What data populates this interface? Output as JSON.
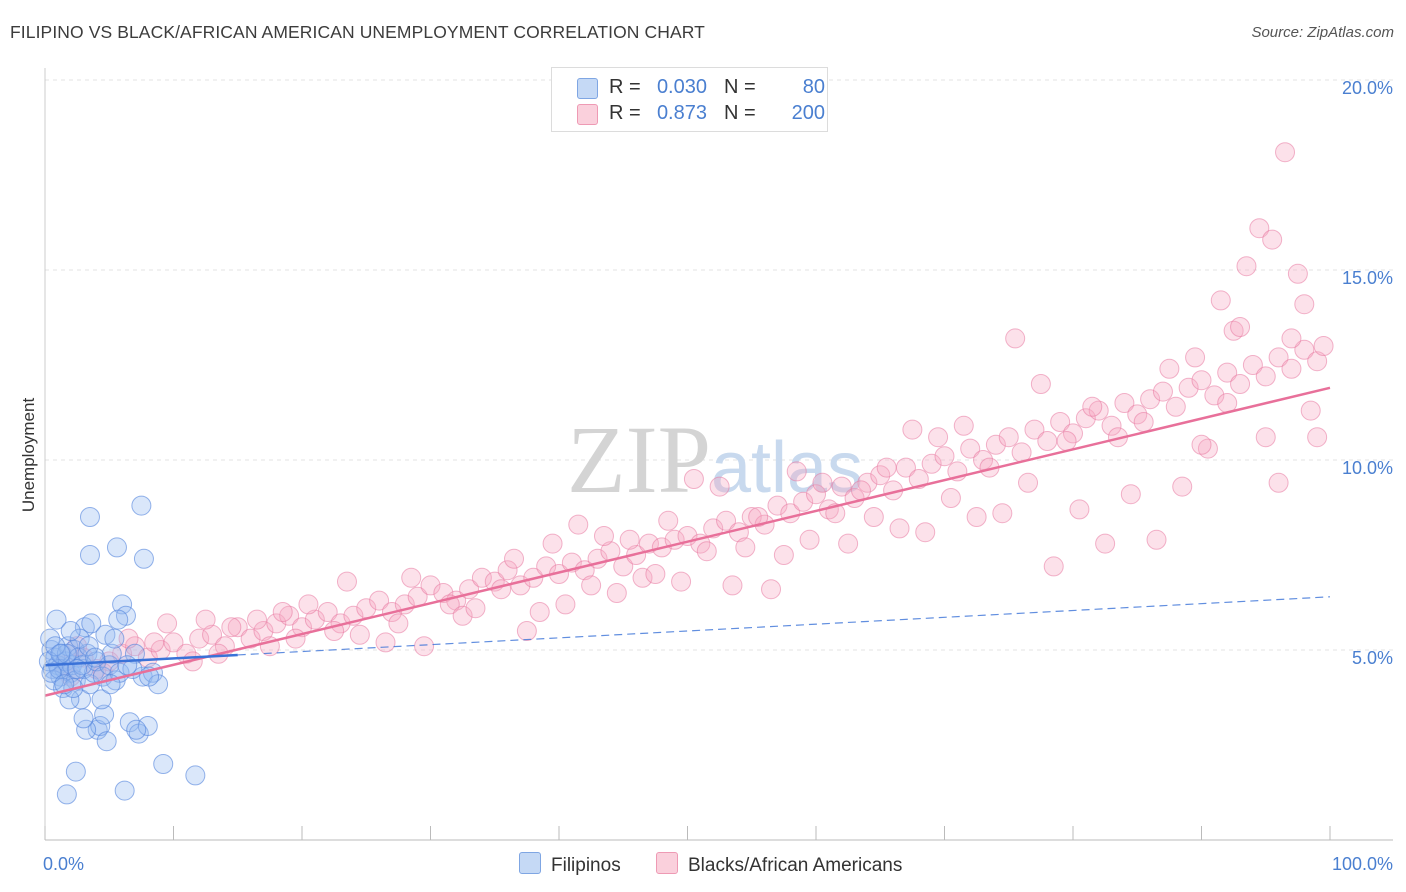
{
  "header": {
    "title": "FILIPINO VS BLACK/AFRICAN AMERICAN UNEMPLOYMENT CORRELATION CHART",
    "source": "Source: ZipAtlas.com"
  },
  "watermark": "ZIPatlas",
  "legend": {
    "rows": [
      {
        "r_label": "R =",
        "r_value": "0.030",
        "n_label": "N =",
        "n_value": "80",
        "color": "#a9c6f0"
      },
      {
        "r_label": "R =",
        "r_value": "0.873",
        "n_label": "N =",
        "n_value": "200",
        "color": "#f5b6c8"
      }
    ]
  },
  "bottom_legend": {
    "series1": "Filipinos",
    "series2": "Blacks/African Americans"
  },
  "chart_data": {
    "type": "scatter",
    "title": "FILIPINO VS BLACK/AFRICAN AMERICAN UNEMPLOYMENT CORRELATION CHART",
    "xlabel": "",
    "ylabel": "Unemployment",
    "xlim": [
      0,
      100
    ],
    "ylim": [
      0,
      20
    ],
    "x_tick_labels": [
      "0.0%",
      "100.0%"
    ],
    "y_ticks": [
      5,
      10,
      15,
      20
    ],
    "y_tick_labels": [
      "5.0%",
      "10.0%",
      "15.0%",
      "20.0%"
    ],
    "grid": true,
    "colors": {
      "filipinos": "#6a9be0",
      "blacks": "#ef8fae",
      "filipinos_line": "#3a72d8",
      "blacks_line": "#e8709a"
    },
    "series": [
      {
        "name": "Filipinos",
        "R": 0.03,
        "N": 80,
        "trend": {
          "x": [
            0,
            100
          ],
          "y": [
            4.6,
            6.4
          ],
          "solid_until_x": 15
        },
        "points": [
          [
            0.5,
            5.0
          ],
          [
            0.6,
            4.5
          ],
          [
            0.8,
            4.8
          ],
          [
            1.0,
            4.6
          ],
          [
            1.2,
            4.3
          ],
          [
            1.3,
            4.9
          ],
          [
            1.5,
            4.5
          ],
          [
            1.6,
            4.7
          ],
          [
            1.8,
            5.1
          ],
          [
            2.0,
            4.4
          ],
          [
            2.1,
            4.6
          ],
          [
            2.3,
            5.0
          ],
          [
            2.4,
            4.2
          ],
          [
            2.6,
            4.8
          ],
          [
            2.8,
            3.7
          ],
          [
            3.0,
            4.5
          ],
          [
            3.1,
            5.6
          ],
          [
            3.3,
            4.9
          ],
          [
            3.5,
            4.1
          ],
          [
            3.6,
            5.7
          ],
          [
            3.8,
            4.4
          ],
          [
            4.0,
            4.7
          ],
          [
            4.1,
            2.9
          ],
          [
            4.3,
            3.0
          ],
          [
            4.5,
            4.3
          ],
          [
            4.6,
            3.3
          ],
          [
            4.8,
            2.6
          ],
          [
            5.0,
            4.6
          ],
          [
            5.2,
            4.9
          ],
          [
            5.5,
            4.2
          ],
          [
            5.8,
            4.4
          ],
          [
            6.0,
            6.2
          ],
          [
            6.3,
            5.9
          ],
          [
            6.6,
            3.1
          ],
          [
            7.0,
            4.9
          ],
          [
            7.3,
            2.8
          ],
          [
            7.6,
            4.3
          ],
          [
            8.0,
            3.0
          ],
          [
            8.4,
            4.4
          ],
          [
            8.8,
            4.1
          ],
          [
            9.2,
            2.0
          ],
          [
            3.5,
            8.5
          ],
          [
            3.5,
            7.5
          ],
          [
            5.6,
            7.7
          ],
          [
            7.5,
            8.8
          ],
          [
            7.7,
            7.4
          ],
          [
            1.7,
            1.2
          ],
          [
            2.4,
            1.8
          ],
          [
            6.2,
            1.3
          ],
          [
            11.7,
            1.7
          ],
          [
            0.4,
            5.3
          ],
          [
            0.9,
            5.8
          ],
          [
            1.4,
            4.0
          ],
          [
            1.9,
            3.7
          ],
          [
            2.7,
            5.3
          ],
          [
            3.2,
            2.9
          ],
          [
            4.7,
            5.4
          ],
          [
            5.4,
            5.3
          ],
          [
            6.8,
            4.5
          ],
          [
            7.1,
            2.9
          ],
          [
            0.7,
            4.2
          ],
          [
            1.1,
            4.5
          ],
          [
            1.7,
            4.9
          ],
          [
            2.2,
            4.0
          ],
          [
            2.9,
            4.6
          ],
          [
            3.4,
            5.1
          ],
          [
            3.9,
            4.8
          ],
          [
            4.4,
            3.7
          ],
          [
            5.1,
            4.1
          ],
          [
            5.7,
            5.8
          ],
          [
            6.4,
            4.6
          ],
          [
            8.1,
            4.3
          ],
          [
            0.3,
            4.7
          ],
          [
            0.5,
            4.4
          ],
          [
            0.8,
            5.1
          ],
          [
            1.2,
            4.9
          ],
          [
            1.5,
            4.1
          ],
          [
            2.0,
            5.5
          ],
          [
            2.5,
            4.5
          ],
          [
            3.0,
            3.2
          ]
        ]
      },
      {
        "name": "Blacks/African Americans",
        "R": 0.873,
        "N": 200,
        "trend": {
          "x": [
            0,
            100
          ],
          "y": [
            3.8,
            11.9
          ]
        },
        "points": [
          [
            1.5,
            4.6
          ],
          [
            2.0,
            4.3
          ],
          [
            3.0,
            4.8
          ],
          [
            4.0,
            4.5
          ],
          [
            5.0,
            4.7
          ],
          [
            6.0,
            4.9
          ],
          [
            7.0,
            5.1
          ],
          [
            8.0,
            4.8
          ],
          [
            9.0,
            5.0
          ],
          [
            10.0,
            5.2
          ],
          [
            11.0,
            4.9
          ],
          [
            12.0,
            5.3
          ],
          [
            13.0,
            5.4
          ],
          [
            14.0,
            5.1
          ],
          [
            15.0,
            5.6
          ],
          [
            16.0,
            5.3
          ],
          [
            17.0,
            5.5
          ],
          [
            18.0,
            5.7
          ],
          [
            19.0,
            5.9
          ],
          [
            20.0,
            5.6
          ],
          [
            21.0,
            5.8
          ],
          [
            22.0,
            6.0
          ],
          [
            23.0,
            5.7
          ],
          [
            24.0,
            5.9
          ],
          [
            25.0,
            6.1
          ],
          [
            26.0,
            6.3
          ],
          [
            27.0,
            6.0
          ],
          [
            28.0,
            6.2
          ],
          [
            29.0,
            6.4
          ],
          [
            30.0,
            6.7
          ],
          [
            31.0,
            6.5
          ],
          [
            32.0,
            6.3
          ],
          [
            33.0,
            6.6
          ],
          [
            34.0,
            6.9
          ],
          [
            35.0,
            6.8
          ],
          [
            36.0,
            7.1
          ],
          [
            37.0,
            6.7
          ],
          [
            38.0,
            6.9
          ],
          [
            39.0,
            7.2
          ],
          [
            40.0,
            7.0
          ],
          [
            41.0,
            7.3
          ],
          [
            42.0,
            7.1
          ],
          [
            43.0,
            7.4
          ],
          [
            44.0,
            7.6
          ],
          [
            45.0,
            7.2
          ],
          [
            46.0,
            7.5
          ],
          [
            47.0,
            7.8
          ],
          [
            48.0,
            7.7
          ],
          [
            49.0,
            7.9
          ],
          [
            50.0,
            8.0
          ],
          [
            51.0,
            7.8
          ],
          [
            52.0,
            8.2
          ],
          [
            53.0,
            8.4
          ],
          [
            54.0,
            8.1
          ],
          [
            55.0,
            8.5
          ],
          [
            56.0,
            8.3
          ],
          [
            57.0,
            8.8
          ],
          [
            58.0,
            8.6
          ],
          [
            59.0,
            8.9
          ],
          [
            60.0,
            9.1
          ],
          [
            61.0,
            8.7
          ],
          [
            62.0,
            9.3
          ],
          [
            63.0,
            9.0
          ],
          [
            64.0,
            9.4
          ],
          [
            65.0,
            9.6
          ],
          [
            66.0,
            9.2
          ],
          [
            67.0,
            9.8
          ],
          [
            68.0,
            9.5
          ],
          [
            69.0,
            9.9
          ],
          [
            70.0,
            10.1
          ],
          [
            71.0,
            9.7
          ],
          [
            72.0,
            10.3
          ],
          [
            73.0,
            10.0
          ],
          [
            74.0,
            10.4
          ],
          [
            75.0,
            10.6
          ],
          [
            76.0,
            10.2
          ],
          [
            77.0,
            10.8
          ],
          [
            78.0,
            10.5
          ],
          [
            79.0,
            11.0
          ],
          [
            80.0,
            10.7
          ],
          [
            81.0,
            11.1
          ],
          [
            82.0,
            11.3
          ],
          [
            83.0,
            10.9
          ],
          [
            84.0,
            11.5
          ],
          [
            85.0,
            11.2
          ],
          [
            86.0,
            11.6
          ],
          [
            87.0,
            11.8
          ],
          [
            88.0,
            11.4
          ],
          [
            89.0,
            11.9
          ],
          [
            90.0,
            12.1
          ],
          [
            91.0,
            11.7
          ],
          [
            92.0,
            12.3
          ],
          [
            93.0,
            12.0
          ],
          [
            94.0,
            12.5
          ],
          [
            95.0,
            12.2
          ],
          [
            96.0,
            12.7
          ],
          [
            97.0,
            12.4
          ],
          [
            98.0,
            12.9
          ],
          [
            99.0,
            12.6
          ],
          [
            99.5,
            13.0
          ],
          [
            2.5,
            5.1
          ],
          [
            4.5,
            4.4
          ],
          [
            6.5,
            5.3
          ],
          [
            8.5,
            5.2
          ],
          [
            9.5,
            5.7
          ],
          [
            11.5,
            4.7
          ],
          [
            12.5,
            5.8
          ],
          [
            13.5,
            4.9
          ],
          [
            14.5,
            5.6
          ],
          [
            16.5,
            5.8
          ],
          [
            17.5,
            5.1
          ],
          [
            18.5,
            6.0
          ],
          [
            19.5,
            5.3
          ],
          [
            20.5,
            6.2
          ],
          [
            22.5,
            5.5
          ],
          [
            23.5,
            6.8
          ],
          [
            24.5,
            5.4
          ],
          [
            26.5,
            5.2
          ],
          [
            27.5,
            5.7
          ],
          [
            28.5,
            6.9
          ],
          [
            29.5,
            5.1
          ],
          [
            31.5,
            6.2
          ],
          [
            32.5,
            5.9
          ],
          [
            33.5,
            6.1
          ],
          [
            35.5,
            6.6
          ],
          [
            36.5,
            7.4
          ],
          [
            37.5,
            5.5
          ],
          [
            38.5,
            6.0
          ],
          [
            39.5,
            7.8
          ],
          [
            40.5,
            6.2
          ],
          [
            41.5,
            8.3
          ],
          [
            42.5,
            6.7
          ],
          [
            43.5,
            8.0
          ],
          [
            44.5,
            6.5
          ],
          [
            45.5,
            7.9
          ],
          [
            46.5,
            6.9
          ],
          [
            47.5,
            7.0
          ],
          [
            48.5,
            8.4
          ],
          [
            49.5,
            6.8
          ],
          [
            50.5,
            9.5
          ],
          [
            51.5,
            7.6
          ],
          [
            52.5,
            9.3
          ],
          [
            53.5,
            6.7
          ],
          [
            54.5,
            7.7
          ],
          [
            55.5,
            8.5
          ],
          [
            56.5,
            6.6
          ],
          [
            57.5,
            7.5
          ],
          [
            58.5,
            9.7
          ],
          [
            59.5,
            7.9
          ],
          [
            60.5,
            9.4
          ],
          [
            61.5,
            8.6
          ],
          [
            62.5,
            7.8
          ],
          [
            63.5,
            9.2
          ],
          [
            64.5,
            8.5
          ],
          [
            65.5,
            9.8
          ],
          [
            66.5,
            8.2
          ],
          [
            67.5,
            10.8
          ],
          [
            68.5,
            8.1
          ],
          [
            69.5,
            10.6
          ],
          [
            70.5,
            9.0
          ],
          [
            71.5,
            10.9
          ],
          [
            72.5,
            8.5
          ],
          [
            73.5,
            9.8
          ],
          [
            74.5,
            8.6
          ],
          [
            75.5,
            13.2
          ],
          [
            76.5,
            9.4
          ],
          [
            77.5,
            12.0
          ],
          [
            78.5,
            7.2
          ],
          [
            79.5,
            10.5
          ],
          [
            80.5,
            8.7
          ],
          [
            81.5,
            11.4
          ],
          [
            82.5,
            7.8
          ],
          [
            83.5,
            10.6
          ],
          [
            84.5,
            9.1
          ],
          [
            85.5,
            11.0
          ],
          [
            86.5,
            7.9
          ],
          [
            87.5,
            12.4
          ],
          [
            88.5,
            9.3
          ],
          [
            89.5,
            12.7
          ],
          [
            90.5,
            10.3
          ],
          [
            91.5,
            14.2
          ],
          [
            92.5,
            13.4
          ],
          [
            93.5,
            15.1
          ],
          [
            94.5,
            16.1
          ],
          [
            95.5,
            15.8
          ],
          [
            96.5,
            18.1
          ],
          [
            97.0,
            13.2
          ],
          [
            97.5,
            14.9
          ],
          [
            98.0,
            14.1
          ],
          [
            98.5,
            11.3
          ],
          [
            99.0,
            10.6
          ],
          [
            96.0,
            9.4
          ],
          [
            95.0,
            10.6
          ],
          [
            93.0,
            13.5
          ],
          [
            92.0,
            11.5
          ],
          [
            90.0,
            10.4
          ]
        ]
      }
    ]
  }
}
